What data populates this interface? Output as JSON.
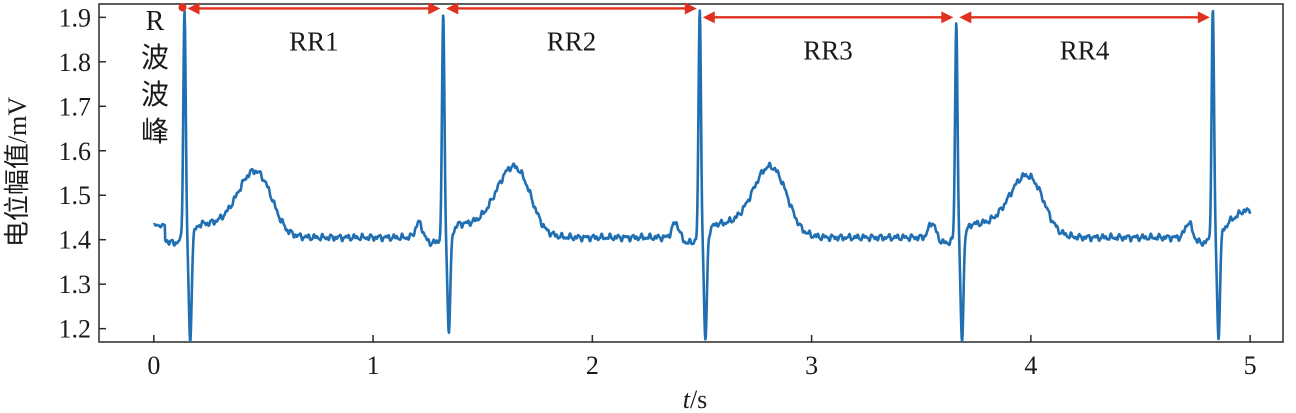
{
  "chart_data": {
    "type": "line",
    "xlabel_italic": "t",
    "xlabel_unit": "/s",
    "ylabel": "电位幅值/mV",
    "xlim": [
      -0.25,
      5.15
    ],
    "ylim": [
      1.17,
      1.93
    ],
    "xticks": [
      "0",
      "1",
      "2",
      "3",
      "4",
      "5"
    ],
    "yticks": [
      "1.2",
      "1.3",
      "1.4",
      "1.5",
      "1.6",
      "1.7",
      "1.8",
      "1.9"
    ],
    "line_color": "#1f6fb2",
    "arrow_color": "#e0301e",
    "annotation": [
      "R",
      "波",
      "波",
      "峰"
    ],
    "r_peaks": [
      {
        "t": 0.14,
        "peak": 1.92,
        "trough": 1.18
      },
      {
        "t": 1.32,
        "peak": 1.91,
        "trough": 1.2
      },
      {
        "t": 2.49,
        "peak": 1.92,
        "trough": 1.18
      },
      {
        "t": 3.66,
        "peak": 1.89,
        "trough": 1.18
      },
      {
        "t": 4.83,
        "peak": 1.92,
        "trough": 1.19
      }
    ],
    "intervals": [
      {
        "label": "RR1",
        "from": 0.14,
        "to": 1.32,
        "y": 1.92
      },
      {
        "label": "RR2",
        "from": 1.32,
        "to": 2.49,
        "y": 1.92
      },
      {
        "label": "RR3",
        "from": 2.49,
        "to": 3.66,
        "y": 1.9
      },
      {
        "label": "RR4",
        "from": 3.66,
        "to": 4.83,
        "y": 1.9
      }
    ],
    "t_waves": [
      {
        "t": 0.46,
        "amp": 1.555
      },
      {
        "t": 1.64,
        "amp": 1.565
      },
      {
        "t": 2.81,
        "amp": 1.565
      },
      {
        "t": 3.98,
        "amp": 1.545
      }
    ],
    "baseline": 1.405,
    "signal_start": 0.0,
    "signal_end": 5.0,
    "end_value": 1.465
  }
}
